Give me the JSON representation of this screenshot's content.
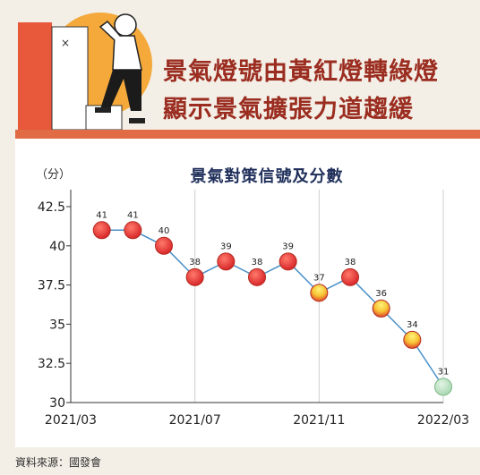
{
  "headline": {
    "line1": "景氣燈號由黃紅燈轉綠燈",
    "line2": "顯示景氣擴張力道趨緩"
  },
  "source": "資料來源：國發會",
  "colors": {
    "headline": "#9b2d20",
    "band": "#e06b45",
    "line": "#4a90c8",
    "red_light": "#d9262a",
    "yellow_red_light": "#f0a020",
    "green_light": "#a8d8b0",
    "title": "#1f2f5a"
  },
  "illustration": {
    "description_icon": "person-on-boxes-illustration",
    "mark": "×"
  },
  "chart_data": {
    "type": "line",
    "title": "景氣對策信號及分數",
    "ylabel": "（分）",
    "xlabel": "",
    "ylim": [
      30,
      42.5
    ],
    "yticks": [
      30,
      32.5,
      35,
      37.5,
      40,
      42.5
    ],
    "xtick_labels": [
      "2021/03",
      "2021/07",
      "2021/11",
      "2022/03"
    ],
    "grid": "vertical",
    "points": [
      {
        "x": "2021/04",
        "y": 41,
        "signal": "red"
      },
      {
        "x": "2021/05",
        "y": 41,
        "signal": "red"
      },
      {
        "x": "2021/06",
        "y": 40,
        "signal": "red"
      },
      {
        "x": "2021/07",
        "y": 38,
        "signal": "red"
      },
      {
        "x": "2021/08",
        "y": 39,
        "signal": "red"
      },
      {
        "x": "2021/09",
        "y": 38,
        "signal": "red"
      },
      {
        "x": "2021/10",
        "y": 39,
        "signal": "red"
      },
      {
        "x": "2021/11",
        "y": 37,
        "signal": "yellow-red"
      },
      {
        "x": "2021/12",
        "y": 38,
        "signal": "red"
      },
      {
        "x": "2022/01",
        "y": 36,
        "signal": "yellow-red"
      },
      {
        "x": "2022/02",
        "y": 34,
        "signal": "yellow-red"
      },
      {
        "x": "2022/03",
        "y": 31,
        "signal": "green"
      }
    ]
  }
}
